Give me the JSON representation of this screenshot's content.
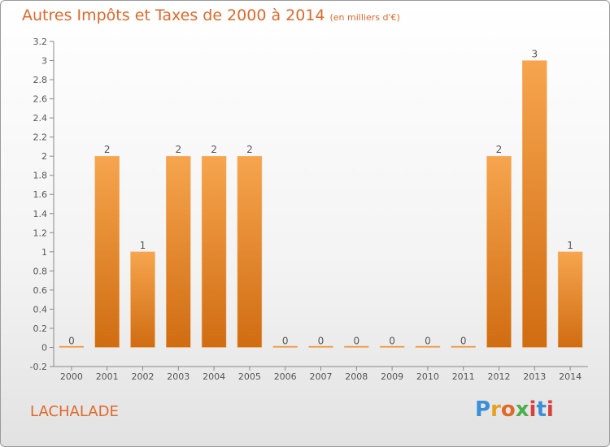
{
  "title": "Autres Impôts et Taxes de 2000 à 2014",
  "unit": "(en milliers d'€)",
  "commune": "LACHALADE",
  "logo": {
    "text": "Proxiti"
  },
  "colors": {
    "bar_light": "#f6a54e",
    "bar_dark": "#d06c12",
    "title": "#e0682a",
    "axis": "#888888"
  },
  "chart_data": {
    "type": "bar",
    "title": "Autres Impôts et Taxes de 2000 à 2014",
    "xlabel": "",
    "ylabel": "",
    "categories": [
      "2000",
      "2001",
      "2002",
      "2003",
      "2004",
      "2005",
      "2006",
      "2007",
      "2008",
      "2009",
      "2010",
      "2011",
      "2012",
      "2013",
      "2014"
    ],
    "values": [
      0,
      2,
      1,
      2,
      2,
      2,
      0,
      0,
      0,
      0,
      0,
      0,
      2,
      3,
      1
    ],
    "data_labels": [
      "0",
      "2",
      "1",
      "2",
      "2",
      "2",
      "0",
      "0",
      "0",
      "0",
      "0",
      "0",
      "2",
      "3",
      "1"
    ],
    "ylim": [
      -0.2,
      3.2
    ],
    "yticks": [
      "-0.2",
      "0",
      "0.2",
      "0.4",
      "0.6",
      "0.8",
      "1",
      "1.2",
      "1.4",
      "1.6",
      "1.8",
      "2",
      "2.2",
      "2.4",
      "2.6",
      "2.8",
      "3",
      "3.2"
    ],
    "grid": false,
    "legend": "none"
  }
}
